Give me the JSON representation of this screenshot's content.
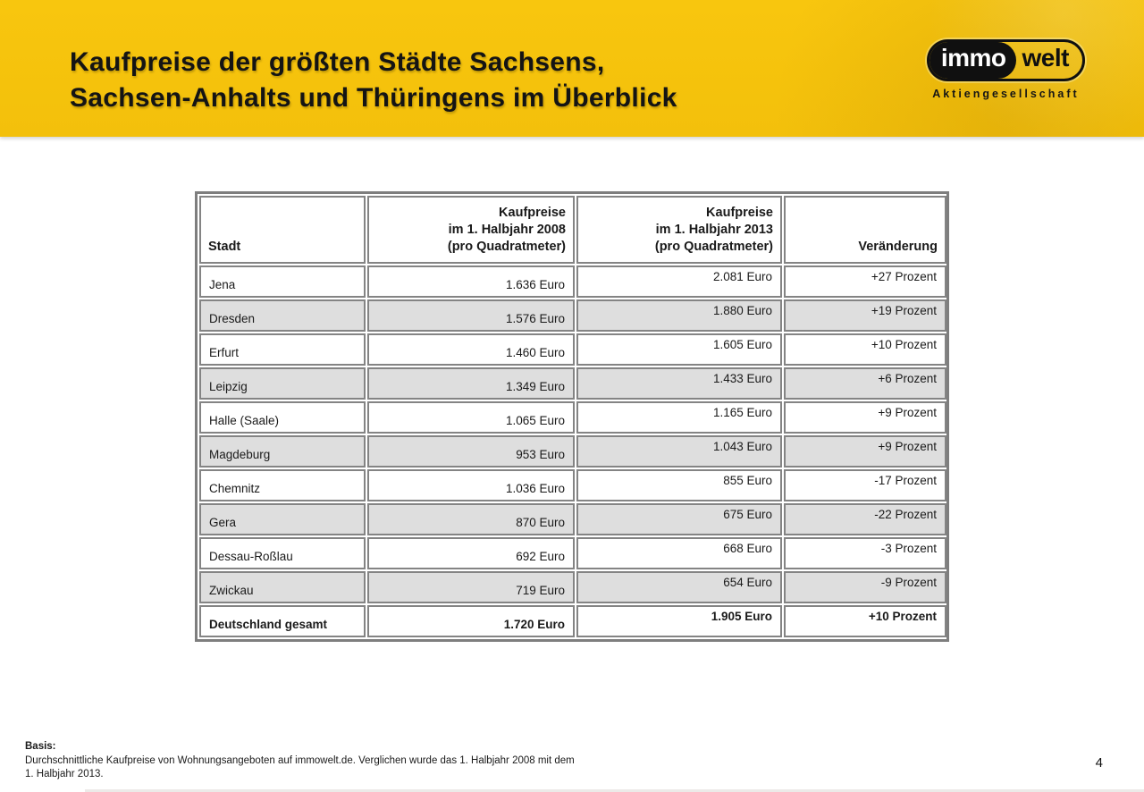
{
  "header": {
    "title_line1": "Kaufpreise der größten Städte Sachsens,",
    "title_line2": "Sachsen-Anhalts und Thüringens im Überblick",
    "banner_color": "#F8C60E",
    "logo": {
      "immo": "immo",
      "welt": "welt",
      "subtitle": "Aktiengesellschaft"
    }
  },
  "table": {
    "columns": [
      {
        "lines": [
          "Stadt"
        ]
      },
      {
        "lines": [
          "Kaufpreise",
          "im 1. Halbjahr 2008",
          "(pro Quadratmeter)"
        ]
      },
      {
        "lines": [
          "Kaufpreise",
          "im 1. Halbjahr 2013",
          "(pro Quadratmeter)"
        ]
      },
      {
        "lines": [
          "Veränderung"
        ]
      }
    ],
    "rows": [
      {
        "stadt": "Jena",
        "kaufpreis_2008": "1.636 Euro",
        "kaufpreis_2013": "2.081 Euro",
        "veraenderung": "+27 Prozent"
      },
      {
        "stadt": "Dresden",
        "kaufpreis_2008": "1.576 Euro",
        "kaufpreis_2013": "1.880 Euro",
        "veraenderung": "+19 Prozent"
      },
      {
        "stadt": "Erfurt",
        "kaufpreis_2008": "1.460 Euro",
        "kaufpreis_2013": "1.605 Euro",
        "veraenderung": "+10 Prozent"
      },
      {
        "stadt": "Leipzig",
        "kaufpreis_2008": "1.349 Euro",
        "kaufpreis_2013": "1.433 Euro",
        "veraenderung": "+6 Prozent"
      },
      {
        "stadt": "Halle (Saale)",
        "kaufpreis_2008": "1.065 Euro",
        "kaufpreis_2013": "1.165 Euro",
        "veraenderung": "+9 Prozent"
      },
      {
        "stadt": "Magdeburg",
        "kaufpreis_2008": "953 Euro",
        "kaufpreis_2013": "1.043 Euro",
        "veraenderung": "+9 Prozent"
      },
      {
        "stadt": "Chemnitz",
        "kaufpreis_2008": "1.036 Euro",
        "kaufpreis_2013": "855 Euro",
        "veraenderung": "-17 Prozent"
      },
      {
        "stadt": "Gera",
        "kaufpreis_2008": "870 Euro",
        "kaufpreis_2013": "675 Euro",
        "veraenderung": "-22 Prozent"
      },
      {
        "stadt": "Dessau-Roßlau",
        "kaufpreis_2008": "692 Euro",
        "kaufpreis_2013": "668 Euro",
        "veraenderung": "-3 Prozent"
      },
      {
        "stadt": "Zwickau",
        "kaufpreis_2008": "719 Euro",
        "kaufpreis_2013": "654 Euro",
        "veraenderung": "-9 Prozent"
      },
      {
        "stadt": "Deutschland gesamt",
        "kaufpreis_2008": "1.720 Euro",
        "kaufpreis_2013": "1.905 Euro",
        "veraenderung": "+10 Prozent"
      }
    ],
    "row_alt_color": "#DEDEDE",
    "border_color": "#7E7E7E"
  },
  "footer": {
    "basis_label": "Basis:",
    "basis_text": "Durchschnittliche Kaufpreise von Wohnungsangeboten auf immowelt.de. Verglichen wurde das 1. Halbjahr 2008 mit dem 1. Halbjahr 2013.",
    "page_number": "4"
  }
}
